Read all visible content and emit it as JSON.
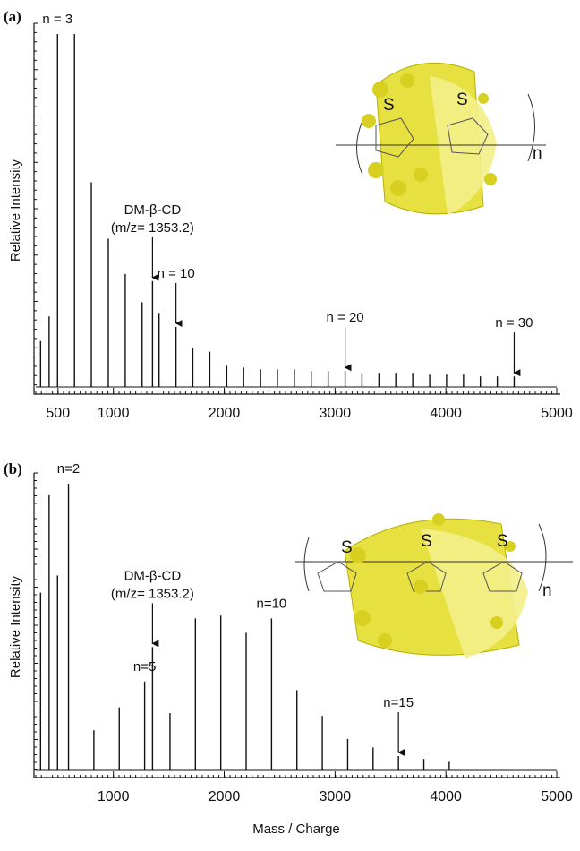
{
  "chart_data": [
    {
      "type": "spectrum",
      "panel": "(a)",
      "ylabel": "Relative Intensity",
      "x": [
        343,
        420,
        496,
        649,
        801,
        954,
        1107,
        1259,
        1353,
        1412,
        1565,
        1717,
        1870,
        2023,
        2175,
        2328,
        2480,
        2633,
        2785,
        2938,
        3091,
        3243,
        3396,
        3548,
        3701,
        3854,
        4006,
        4159,
        4311,
        4464,
        4616
      ],
      "values": [
        13,
        20,
        100,
        100,
        58,
        42,
        32,
        24,
        30,
        21,
        17,
        11,
        10,
        6,
        5.5,
        5,
        5,
        5,
        4.5,
        4.5,
        4.5,
        4,
        4,
        4,
        4,
        3.5,
        3.5,
        3.5,
        3,
        3,
        3
      ],
      "xlim": [
        300,
        5000
      ],
      "xticks": [
        500,
        1000,
        2000,
        3000,
        4000,
        5000
      ],
      "ylim": [
        0,
        100
      ],
      "annotations": [
        {
          "text": [
            "n = 3"
          ],
          "x": 496,
          "arrow": false
        },
        {
          "text": [
            "DM-β-CD",
            "(m/z= 1353.2)"
          ],
          "x": 1353,
          "arrow": true
        },
        {
          "text": [
            "n = 10"
          ],
          "x": 1565,
          "arrow": true
        },
        {
          "text": [
            "n = 20"
          ],
          "x": 3091,
          "arrow": true
        },
        {
          "text": [
            "n = 30"
          ],
          "x": 4616,
          "arrow": true
        }
      ],
      "structure_labels": [
        "S",
        "S",
        "n"
      ]
    },
    {
      "type": "spectrum",
      "panel": "(b)",
      "ylabel": "Relative Intensity",
      "xlabel": "Mass / Charge",
      "x": [
        343,
        420,
        496,
        595,
        824,
        1053,
        1282,
        1353,
        1511,
        1740,
        1969,
        2198,
        2427,
        2656,
        2885,
        3114,
        3343,
        3572,
        3801,
        4030
      ],
      "values": [
        62,
        96,
        68,
        100,
        14,
        22,
        31,
        43,
        20,
        53,
        54,
        48,
        53,
        28,
        19,
        11,
        8,
        5,
        4,
        3
      ],
      "xlim": [
        300,
        5000
      ],
      "xticks": [
        1000,
        2000,
        3000,
        4000,
        5000
      ],
      "ylim": [
        0,
        100
      ],
      "annotations": [
        {
          "text": [
            "n=2"
          ],
          "x": 595,
          "arrow": false
        },
        {
          "text": [
            "DM-β-CD",
            "(m/z= 1353.2)"
          ],
          "x": 1353,
          "arrow": true
        },
        {
          "text": [
            "n=5"
          ],
          "x": 1282,
          "arrow": false
        },
        {
          "text": [
            "n=10"
          ],
          "x": 2427,
          "arrow": false
        },
        {
          "text": [
            "n=15"
          ],
          "x": 3572,
          "arrow": true
        }
      ],
      "structure_labels": [
        "S",
        "S",
        "S",
        "n"
      ]
    }
  ]
}
